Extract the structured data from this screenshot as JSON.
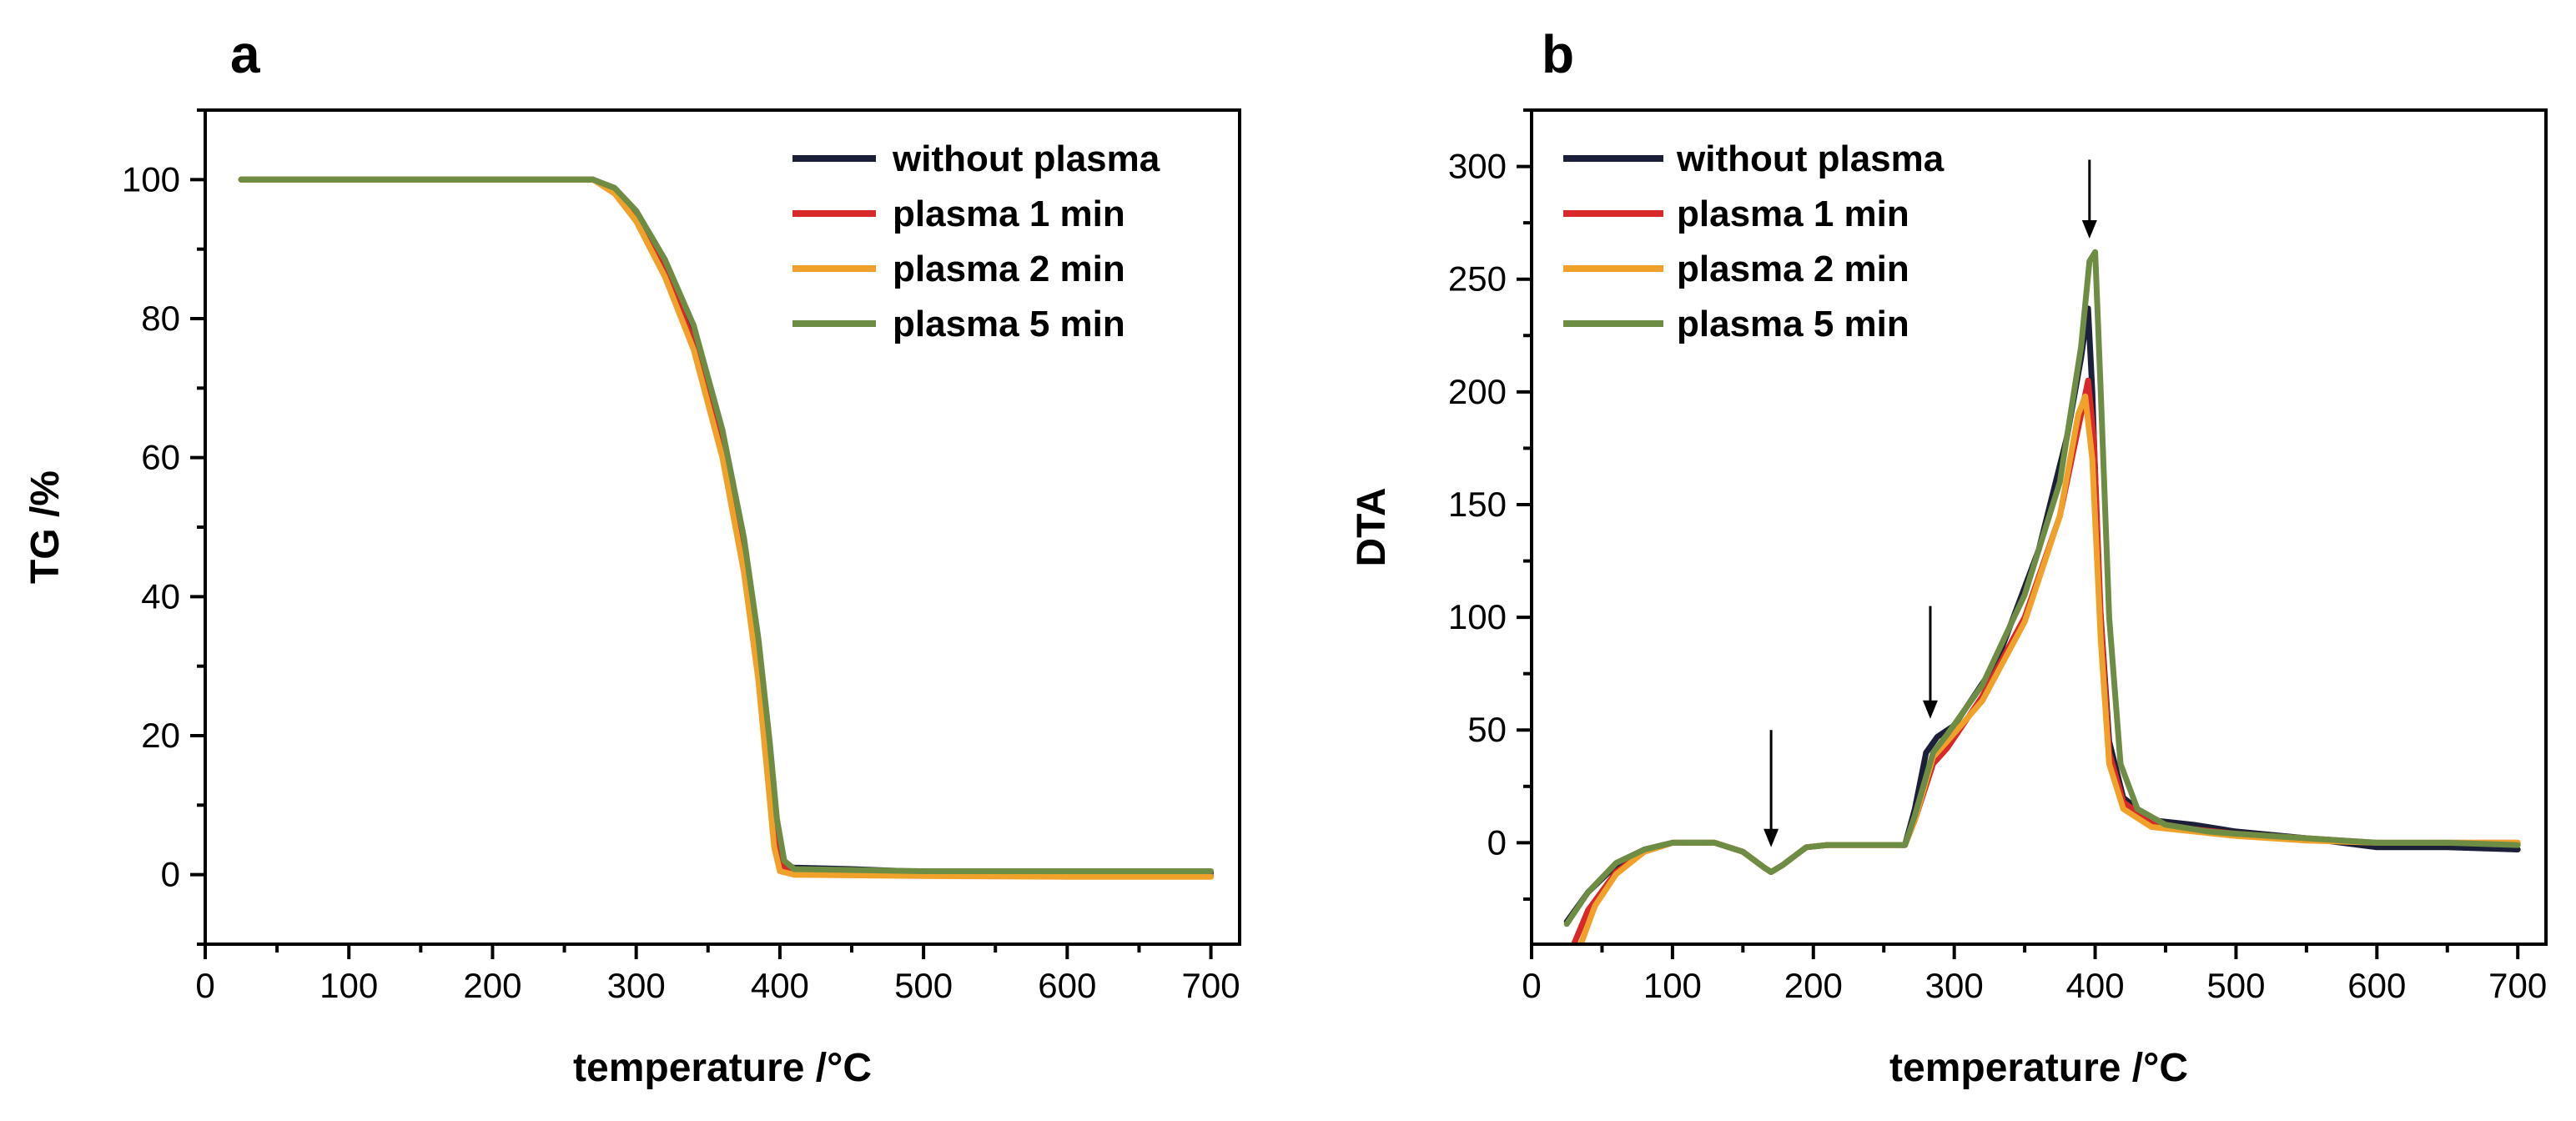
{
  "colors": {
    "without_plasma": "#1c1f3a",
    "plasma_1": "#d8282a",
    "plasma_2": "#f0a12a",
    "plasma_5": "#6e8d44"
  },
  "chart_data": [
    {
      "panel": "a",
      "type": "line",
      "xlabel": "temperature /°C",
      "ylabel": "TG /%",
      "xlim": [
        0,
        720
      ],
      "ylim": [
        -10,
        110
      ],
      "xticks": [
        0,
        100,
        200,
        300,
        400,
        500,
        600,
        700
      ],
      "yticks": [
        0,
        20,
        40,
        60,
        80,
        100
      ],
      "legend": "top-right",
      "legend_labels": [
        "without plasma",
        "plasma 1 min",
        "plasma 2 min",
        "plasma 5 min"
      ],
      "series": [
        {
          "name": "without plasma",
          "color_key": "without_plasma",
          "points": [
            [
              25,
              100
            ],
            [
              270,
              100
            ],
            [
              285,
              98.5
            ],
            [
              300,
              95
            ],
            [
              320,
              88
            ],
            [
              340,
              78
            ],
            [
              360,
              63
            ],
            [
              375,
              47
            ],
            [
              385,
              32
            ],
            [
              392,
              18
            ],
            [
              397,
              7
            ],
            [
              402,
              1.5
            ],
            [
              410,
              1
            ],
            [
              450,
              0.8
            ],
            [
              500,
              0.4
            ],
            [
              600,
              0.3
            ],
            [
              700,
              0.3
            ]
          ]
        },
        {
          "name": "plasma 1 min",
          "color_key": "plasma_1",
          "points": [
            [
              25,
              100
            ],
            [
              270,
              100
            ],
            [
              285,
              98.3
            ],
            [
              300,
              94.5
            ],
            [
              320,
              87
            ],
            [
              340,
              76.5
            ],
            [
              360,
              61
            ],
            [
              375,
              45
            ],
            [
              385,
              30
            ],
            [
              392,
              16
            ],
            [
              397,
              5
            ],
            [
              402,
              1
            ],
            [
              410,
              0.5
            ],
            [
              500,
              0.2
            ],
            [
              600,
              0
            ],
            [
              700,
              -0.2
            ]
          ]
        },
        {
          "name": "plasma 2 min",
          "color_key": "plasma_2",
          "points": [
            [
              25,
              100
            ],
            [
              270,
              100
            ],
            [
              285,
              98
            ],
            [
              300,
              94
            ],
            [
              320,
              86
            ],
            [
              340,
              75.5
            ],
            [
              360,
              60
            ],
            [
              375,
              43.5
            ],
            [
              385,
              28
            ],
            [
              391,
              15
            ],
            [
              396,
              4
            ],
            [
              400,
              0.5
            ],
            [
              410,
              0
            ],
            [
              500,
              -0.2
            ],
            [
              600,
              -0.3
            ],
            [
              700,
              -0.3
            ]
          ]
        },
        {
          "name": "plasma 5 min",
          "color_key": "plasma_5",
          "points": [
            [
              25,
              100
            ],
            [
              270,
              100
            ],
            [
              285,
              98.8
            ],
            [
              300,
              95.5
            ],
            [
              320,
              88.5
            ],
            [
              340,
              79
            ],
            [
              360,
              64
            ],
            [
              375,
              48.5
            ],
            [
              385,
              34
            ],
            [
              393,
              19
            ],
            [
              398,
              8
            ],
            [
              403,
              2
            ],
            [
              410,
              0.8
            ],
            [
              500,
              0.5
            ],
            [
              600,
              0.5
            ],
            [
              700,
              0.5
            ]
          ]
        }
      ]
    },
    {
      "panel": "b",
      "type": "line",
      "xlabel": "temperature /°C",
      "ylabel": "DTA",
      "xlim": [
        0,
        720
      ],
      "ylim": [
        -45,
        325
      ],
      "xticks": [
        0,
        100,
        200,
        300,
        400,
        500,
        600,
        700
      ],
      "yticks": [
        0,
        50,
        100,
        150,
        200,
        250,
        300
      ],
      "legend": "top-left",
      "legend_labels": [
        "without plasma",
        "plasma 1 min",
        "plasma 2 min",
        "plasma 5 min"
      ],
      "annotations": [
        {
          "type": "arrow",
          "x": 170,
          "from_y": 50,
          "to_y": -2
        },
        {
          "type": "arrow",
          "x": 283,
          "from_y": 105,
          "to_y": 55
        },
        {
          "type": "arrow",
          "x": 396,
          "from_y": 303,
          "to_y": 268
        }
      ],
      "series": [
        {
          "name": "without plasma",
          "color_key": "without_plasma",
          "points": [
            [
              25,
              -35
            ],
            [
              40,
              -22
            ],
            [
              60,
              -10
            ],
            [
              80,
              -3
            ],
            [
              100,
              0
            ],
            [
              130,
              0
            ],
            [
              150,
              -4
            ],
            [
              165,
              -11
            ],
            [
              170,
              -13
            ],
            [
              178,
              -10
            ],
            [
              195,
              -2
            ],
            [
              210,
              -1
            ],
            [
              265,
              -1
            ],
            [
              272,
              15
            ],
            [
              280,
              40
            ],
            [
              288,
              47
            ],
            [
              300,
              52
            ],
            [
              330,
              80
            ],
            [
              360,
              130
            ],
            [
              380,
              180
            ],
            [
              390,
              215
            ],
            [
              395,
              237
            ],
            [
              398,
              200
            ],
            [
              403,
              110
            ],
            [
              410,
              45
            ],
            [
              420,
              20
            ],
            [
              440,
              10
            ],
            [
              470,
              8
            ],
            [
              500,
              5
            ],
            [
              550,
              2
            ],
            [
              600,
              -2
            ],
            [
              650,
              -2
            ],
            [
              700,
              -3
            ]
          ]
        },
        {
          "name": "plasma 1 min",
          "color_key": "plasma_1",
          "points": [
            [
              30,
              -45
            ],
            [
              40,
              -30
            ],
            [
              60,
              -13
            ],
            [
              80,
              -4
            ],
            [
              100,
              0
            ],
            [
              130,
              0
            ],
            [
              150,
              -4
            ],
            [
              165,
              -11
            ],
            [
              170,
              -13
            ],
            [
              178,
              -10
            ],
            [
              195,
              -2
            ],
            [
              210,
              -1
            ],
            [
              265,
              -1
            ],
            [
              272,
              10
            ],
            [
              285,
              35
            ],
            [
              295,
              42
            ],
            [
              320,
              65
            ],
            [
              350,
              100
            ],
            [
              375,
              145
            ],
            [
              390,
              190
            ],
            [
              395,
              205
            ],
            [
              399,
              180
            ],
            [
              404,
              100
            ],
            [
              410,
              40
            ],
            [
              420,
              18
            ],
            [
              440,
              9
            ],
            [
              470,
              6
            ],
            [
              500,
              4
            ],
            [
              550,
              2
            ],
            [
              600,
              0
            ],
            [
              650,
              0
            ],
            [
              700,
              0
            ]
          ]
        },
        {
          "name": "plasma 2 min",
          "color_key": "plasma_2",
          "points": [
            [
              35,
              -45
            ],
            [
              45,
              -28
            ],
            [
              60,
              -14
            ],
            [
              80,
              -4
            ],
            [
              100,
              0
            ],
            [
              130,
              0
            ],
            [
              150,
              -4
            ],
            [
              165,
              -11
            ],
            [
              170,
              -13
            ],
            [
              178,
              -10
            ],
            [
              195,
              -2
            ],
            [
              210,
              -1
            ],
            [
              265,
              -1
            ],
            [
              272,
              10
            ],
            [
              285,
              38
            ],
            [
              295,
              45
            ],
            [
              320,
              63
            ],
            [
              350,
              98
            ],
            [
              375,
              145
            ],
            [
              388,
              190
            ],
            [
              393,
              198
            ],
            [
              398,
              170
            ],
            [
              404,
              90
            ],
            [
              410,
              35
            ],
            [
              420,
              15
            ],
            [
              440,
              7
            ],
            [
              470,
              5
            ],
            [
              500,
              3
            ],
            [
              550,
              1
            ],
            [
              600,
              0
            ],
            [
              650,
              0
            ],
            [
              700,
              0
            ]
          ]
        },
        {
          "name": "plasma 5 min",
          "color_key": "plasma_5",
          "points": [
            [
              25,
              -36
            ],
            [
              40,
              -22
            ],
            [
              60,
              -9
            ],
            [
              80,
              -3
            ],
            [
              100,
              0
            ],
            [
              130,
              0
            ],
            [
              150,
              -4
            ],
            [
              165,
              -11
            ],
            [
              170,
              -13
            ],
            [
              178,
              -10
            ],
            [
              195,
              -2
            ],
            [
              210,
              -1
            ],
            [
              265,
              -1
            ],
            [
              272,
              12
            ],
            [
              285,
              40
            ],
            [
              295,
              48
            ],
            [
              320,
              70
            ],
            [
              350,
              110
            ],
            [
              375,
              160
            ],
            [
              390,
              220
            ],
            [
              396,
              258
            ],
            [
              400,
              262
            ],
            [
              404,
              200
            ],
            [
              410,
              100
            ],
            [
              418,
              35
            ],
            [
              430,
              15
            ],
            [
              450,
              8
            ],
            [
              480,
              5
            ],
            [
              500,
              4
            ],
            [
              550,
              2
            ],
            [
              600,
              0
            ],
            [
              650,
              0
            ],
            [
              700,
              -1
            ]
          ]
        }
      ]
    }
  ]
}
